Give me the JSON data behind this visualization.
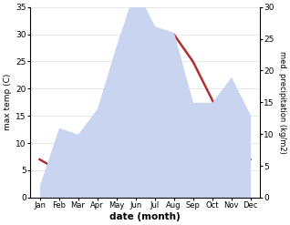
{
  "months": [
    "Jan",
    "Feb",
    "Mar",
    "Apr",
    "May",
    "Jun",
    "Jul",
    "Aug",
    "Sep",
    "Oct",
    "Nov",
    "Dec"
  ],
  "max_temp": [
    7,
    5,
    9,
    15,
    26,
    31,
    30,
    30,
    25,
    18,
    11,
    7
  ],
  "precipitation": [
    2,
    11,
    10,
    14,
    24,
    33,
    27,
    26,
    15,
    15,
    19,
    13
  ],
  "temp_color": "#b03030",
  "precip_fill_color": "#c8d4f0",
  "temp_ylim": [
    0,
    35
  ],
  "precip_ylim": [
    0,
    30
  ],
  "temp_yticks": [
    0,
    5,
    10,
    15,
    20,
    25,
    30,
    35
  ],
  "precip_yticks": [
    0,
    5,
    10,
    15,
    20,
    25,
    30
  ],
  "xlabel": "date (month)",
  "ylabel_left": "max temp (C)",
  "ylabel_right": "med. precipitation (kg/m2)",
  "background_color": "#ffffff",
  "line_width": 1.8
}
